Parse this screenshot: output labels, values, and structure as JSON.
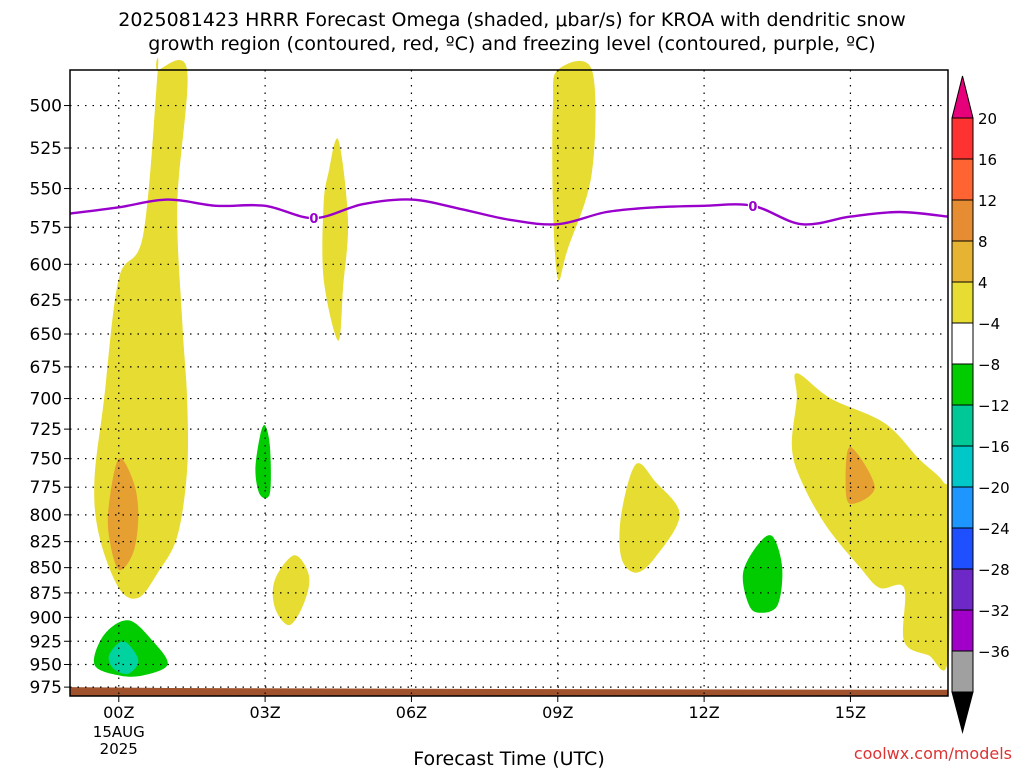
{
  "title": {
    "line1": "2025081423 HRRR Forecast Omega (shaded, μbar/s) for KROA with dendritic snow",
    "line2": "growth region (contoured, red, ºC) and freezing level (contoured, purple, ºC)"
  },
  "credit": "coolwx.com/models",
  "chart_data": {
    "type": "contour",
    "xlabel": "Forecast Time (UTC)",
    "ylabel": "",
    "x_unit": "hours since 2025-08-14 23Z",
    "xlim": [
      0,
      18
    ],
    "ylim": [
      985,
      480
    ],
    "y_scale": "log-pressure",
    "grid": true,
    "x_ticks": [
      {
        "hour": 1,
        "label": "00Z",
        "sub1": "15AUG",
        "sub2": "2025"
      },
      {
        "hour": 4,
        "label": "03Z"
      },
      {
        "hour": 7,
        "label": "06Z"
      },
      {
        "hour": 10,
        "label": "09Z"
      },
      {
        "hour": 13,
        "label": "12Z"
      },
      {
        "hour": 16,
        "label": "15Z"
      }
    ],
    "y_ticks": [
      500,
      525,
      550,
      575,
      600,
      625,
      650,
      675,
      700,
      725,
      750,
      775,
      800,
      825,
      850,
      875,
      900,
      925,
      950,
      975
    ],
    "freezing_level": {
      "label": "0",
      "color": "#9900cc",
      "points": [
        [
          0,
          566
        ],
        [
          1,
          562
        ],
        [
          2,
          557
        ],
        [
          3,
          561
        ],
        [
          4,
          561
        ],
        [
          5,
          569
        ],
        [
          6,
          560
        ],
        [
          7,
          557
        ],
        [
          8,
          563
        ],
        [
          9,
          570
        ],
        [
          10,
          573
        ],
        [
          11,
          565
        ],
        [
          12,
          562
        ],
        [
          13,
          561
        ],
        [
          14,
          561
        ],
        [
          15,
          573
        ],
        [
          16,
          568
        ],
        [
          17,
          565
        ],
        [
          18,
          568
        ]
      ]
    },
    "omega_regions": [
      {
        "color": "#e6dc32",
        "points": [
          [
            1.8,
            478
          ],
          [
            2.4,
            478
          ],
          [
            2.2,
            560
          ],
          [
            2.3,
            640
          ],
          [
            2.4,
            700
          ],
          [
            2.4,
            760
          ],
          [
            2.2,
            820
          ],
          [
            1.8,
            855
          ],
          [
            1.4,
            880
          ],
          [
            1.0,
            870
          ],
          [
            0.6,
            820
          ],
          [
            0.5,
            770
          ],
          [
            0.7,
            700
          ],
          [
            1.0,
            610
          ],
          [
            1.5,
            580
          ],
          [
            1.8,
            480
          ]
        ]
      },
      {
        "color": "#e6a032",
        "points": [
          [
            1.0,
            750
          ],
          [
            1.3,
            770
          ],
          [
            1.4,
            800
          ],
          [
            1.3,
            835
          ],
          [
            1.0,
            852
          ],
          [
            0.8,
            820
          ],
          [
            0.8,
            790
          ]
        ]
      },
      {
        "color": "#e6dc32",
        "points": [
          [
            5.5,
            520
          ],
          [
            5.7,
            570
          ],
          [
            5.6,
            615
          ],
          [
            5.5,
            655
          ],
          [
            5.2,
            610
          ],
          [
            5.2,
            560
          ],
          [
            5.3,
            540
          ]
        ]
      },
      {
        "color": "#e6dc32",
        "points": [
          [
            4.6,
            838
          ],
          [
            4.9,
            858
          ],
          [
            4.8,
            885
          ],
          [
            4.5,
            908
          ],
          [
            4.2,
            890
          ],
          [
            4.2,
            862
          ]
        ]
      },
      {
        "color": "#e6dc32",
        "points": [
          [
            10.0,
            478
          ],
          [
            10.7,
            478
          ],
          [
            10.7,
            540
          ],
          [
            10.2,
            590
          ],
          [
            10.0,
            610
          ],
          [
            9.9,
            560
          ],
          [
            9.9,
            500
          ]
        ]
      },
      {
        "color": "#e6dc32",
        "points": [
          [
            12.0,
            770
          ],
          [
            12.5,
            800
          ],
          [
            12.0,
            840
          ],
          [
            11.6,
            855
          ],
          [
            11.3,
            840
          ],
          [
            11.3,
            800
          ],
          [
            11.6,
            755
          ]
        ]
      },
      {
        "color": "#e6dc32",
        "points": [
          [
            14.9,
            680
          ],
          [
            15.6,
            700
          ],
          [
            16.7,
            720
          ],
          [
            17.4,
            750
          ],
          [
            17.9,
            770
          ],
          [
            18,
            790
          ],
          [
            18,
            945
          ],
          [
            17.6,
            940
          ],
          [
            17.1,
            925
          ],
          [
            17.1,
            870
          ],
          [
            16.6,
            870
          ],
          [
            16.2,
            850
          ],
          [
            15.5,
            810
          ],
          [
            15.0,
            770
          ],
          [
            14.8,
            740
          ],
          [
            14.9,
            700
          ]
        ]
      },
      {
        "color": "#e6a032",
        "points": [
          [
            16.0,
            740
          ],
          [
            16.5,
            775
          ],
          [
            16.0,
            790
          ],
          [
            15.9,
            770
          ]
        ]
      },
      {
        "color": "#00cc00",
        "points": [
          [
            4.0,
            722
          ],
          [
            4.1,
            740
          ],
          [
            4.1,
            780
          ],
          [
            3.9,
            782
          ],
          [
            3.8,
            760
          ],
          [
            3.9,
            730
          ]
        ]
      },
      {
        "color": "#00cc00",
        "points": [
          [
            14.4,
            820
          ],
          [
            14.6,
            850
          ],
          [
            14.5,
            888
          ],
          [
            14.1,
            895
          ],
          [
            13.9,
            885
          ],
          [
            13.8,
            855
          ],
          [
            14.1,
            828
          ]
        ]
      },
      {
        "color": "#00cc00",
        "points": [
          [
            1.2,
            903
          ],
          [
            1.7,
            925
          ],
          [
            2.0,
            950
          ],
          [
            1.5,
            962
          ],
          [
            1.0,
            962
          ],
          [
            0.5,
            950
          ],
          [
            0.7,
            918
          ]
        ]
      },
      {
        "color": "#00d2a0",
        "points": [
          [
            1.1,
            925
          ],
          [
            1.4,
            945
          ],
          [
            1.2,
            960
          ],
          [
            0.9,
            955
          ],
          [
            0.8,
            940
          ]
        ]
      }
    ],
    "ground": {
      "color": "#a0522d",
      "pressure_top": [
        [
          0,
          975
        ],
        [
          2,
          976
        ],
        [
          8,
          977
        ],
        [
          18,
          978
        ]
      ]
    },
    "colorbar": {
      "labels": [
        "20",
        "16",
        "12",
        "8",
        "4",
        "−4",
        "−8",
        "−12",
        "−16",
        "−20",
        "−24",
        "−28",
        "−32",
        "−36"
      ],
      "colors": [
        "#ff3232",
        "#ff6432",
        "#e68c32",
        "#e6b432",
        "#e6dc32",
        "#ffffff",
        "#00cc00",
        "#00c896",
        "#00c8c8",
        "#1e96ff",
        "#1e50ff",
        "#6e28c8",
        "#a000c8",
        "#a0a0a0"
      ],
      "top_color": "#e6007a",
      "bottom_color": "#000000"
    }
  }
}
